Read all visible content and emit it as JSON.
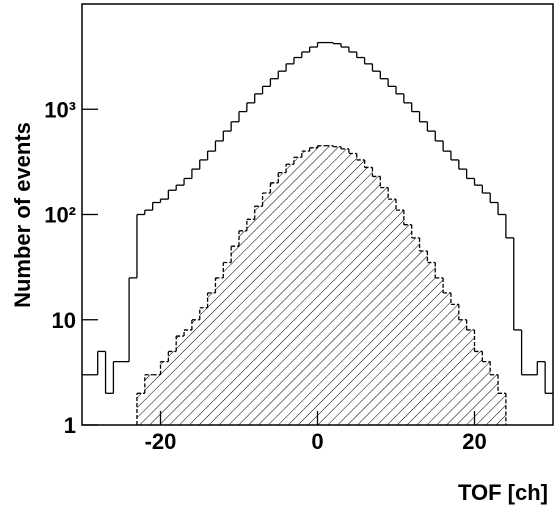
{
  "chart_data": {
    "type": "histogram",
    "xlabel": "TOF [ch]",
    "ylabel": "Number of events",
    "bins": [
      -30,
      -29,
      -28,
      -27,
      -26,
      -25,
      -24,
      -23,
      -22,
      -21,
      -20,
      -19,
      -18,
      -17,
      -16,
      -15,
      -14,
      -13,
      -12,
      -11,
      -10,
      -9,
      -8,
      -7,
      -6,
      -5,
      -4,
      -3,
      -2,
      -1,
      0,
      1,
      2,
      3,
      4,
      5,
      6,
      7,
      8,
      9,
      10,
      11,
      12,
      13,
      14,
      15,
      16,
      17,
      18,
      19,
      20,
      21,
      22,
      23,
      24,
      25,
      26,
      27,
      28,
      29,
      30
    ],
    "series": [
      {
        "color": "#000000",
        "hatched": false,
        "values": [
          3,
          3,
          5,
          2,
          4,
          4,
          25,
          100,
          110,
          130,
          140,
          170,
          190,
          220,
          270,
          330,
          400,
          500,
          620,
          760,
          950,
          1150,
          1400,
          1650,
          1950,
          2300,
          2700,
          3100,
          3500,
          3900,
          4300,
          4300,
          4200,
          3900,
          3500,
          3100,
          2700,
          2300,
          1950,
          1650,
          1400,
          1150,
          950,
          760,
          620,
          500,
          400,
          330,
          270,
          220,
          190,
          160,
          130,
          100,
          60,
          8,
          3,
          3,
          4,
          2
        ]
      },
      {
        "color": "#000000",
        "hatched": true,
        "values": [
          0,
          0,
          0,
          0,
          0,
          0,
          0,
          2,
          3,
          3,
          4,
          5,
          7,
          8,
          10,
          13,
          18,
          25,
          35,
          50,
          70,
          90,
          120,
          160,
          200,
          250,
          300,
          350,
          400,
          430,
          450,
          450,
          440,
          420,
          380,
          330,
          280,
          230,
          180,
          140,
          110,
          80,
          60,
          45,
          35,
          25,
          18,
          14,
          10,
          8,
          5,
          4,
          3,
          2,
          0,
          0,
          0,
          0,
          0,
          0
        ]
      }
    ],
    "xlim": [
      -30,
      30
    ],
    "xticks": [
      -20,
      0,
      20
    ],
    "ylim": [
      1,
      10000
    ],
    "log_y": true,
    "yticks": [
      1,
      10,
      {
        "value": 100,
        "label": "10²"
      },
      {
        "value": 1000,
        "label": "10³"
      }
    ]
  }
}
